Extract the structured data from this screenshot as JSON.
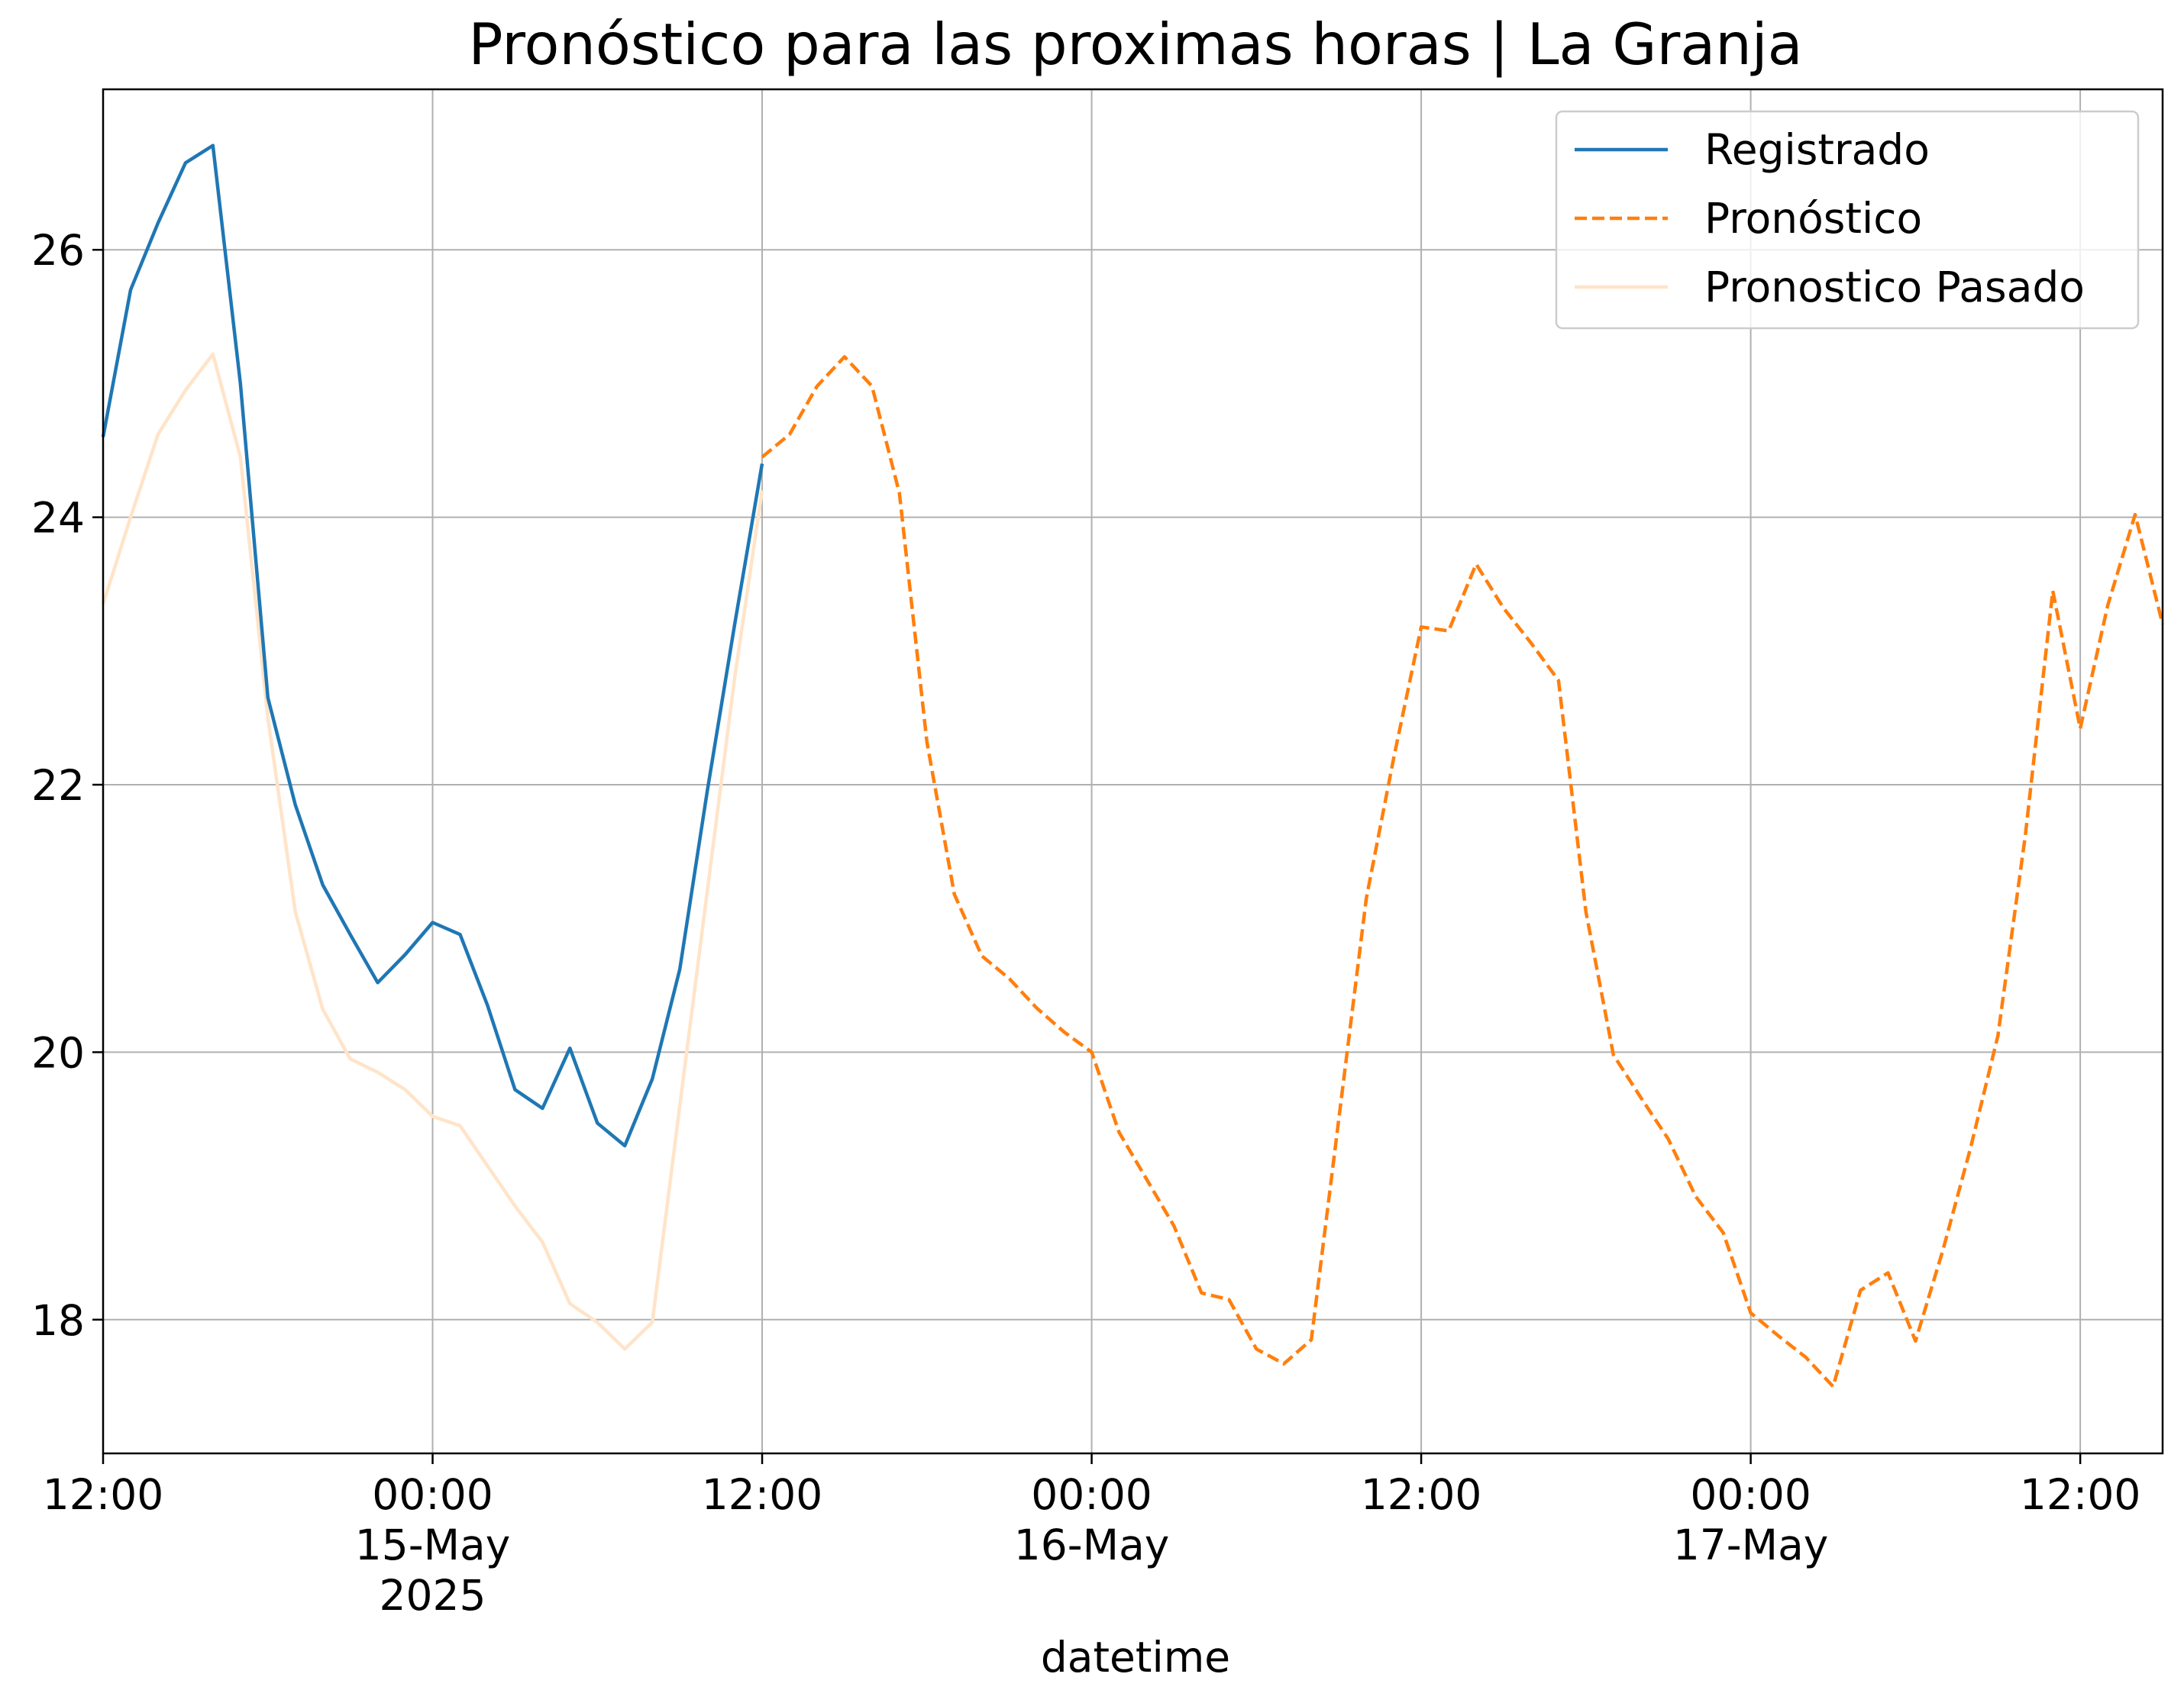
{
  "chart_data": {
    "type": "line",
    "title": "Pronóstico para las proximas horas | La Granja",
    "xlabel": "datetime",
    "ylabel": "",
    "x_unit": "datetime",
    "xlim": [
      "2025-05-14 12:00",
      "2025-05-17 15:00"
    ],
    "ylim": [
      17.0,
      27.2
    ],
    "y_ticks": [
      18,
      20,
      22,
      24,
      26
    ],
    "x_ticks": [
      {
        "at": "2025-05-14 12:00",
        "lines": [
          "12:00"
        ]
      },
      {
        "at": "2025-05-15 00:00",
        "lines": [
          "00:00",
          "15-May",
          "2025"
        ]
      },
      {
        "at": "2025-05-15 12:00",
        "lines": [
          "12:00"
        ]
      },
      {
        "at": "2025-05-16 00:00",
        "lines": [
          "00:00",
          "16-May"
        ]
      },
      {
        "at": "2025-05-16 12:00",
        "lines": [
          "12:00"
        ]
      },
      {
        "at": "2025-05-17 00:00",
        "lines": [
          "00:00",
          "17-May"
        ]
      },
      {
        "at": "2025-05-17 12:00",
        "lines": [
          "12:00"
        ]
      }
    ],
    "grid": true,
    "legend_position": "top-right",
    "series": [
      {
        "name": "Registrado",
        "color": "#1f77b4",
        "style": "solid",
        "x": [
          "2025-05-14 12:00",
          "2025-05-14 13:00",
          "2025-05-14 14:00",
          "2025-05-14 15:00",
          "2025-05-14 16:00",
          "2025-05-14 17:00",
          "2025-05-14 18:00",
          "2025-05-14 19:00",
          "2025-05-14 20:00",
          "2025-05-14 21:00",
          "2025-05-14 22:00",
          "2025-05-14 23:00",
          "2025-05-15 00:00",
          "2025-05-15 01:00",
          "2025-05-15 02:00",
          "2025-05-15 03:00",
          "2025-05-15 04:00",
          "2025-05-15 05:00",
          "2025-05-15 06:00",
          "2025-05-15 07:00",
          "2025-05-15 08:00",
          "2025-05-15 09:00",
          "2025-05-15 10:00",
          "2025-05-15 11:00",
          "2025-05-15 12:00"
        ],
        "values": [
          24.6,
          25.7,
          26.2,
          26.65,
          26.78,
          25.0,
          22.65,
          21.85,
          21.25,
          20.88,
          20.52,
          20.73,
          20.97,
          20.88,
          20.35,
          19.72,
          19.58,
          20.03,
          19.47,
          19.3,
          19.8,
          20.62,
          21.95,
          23.2,
          24.4
        ]
      },
      {
        "name": "Pronóstico",
        "color": "#ff7f0e",
        "style": "dashed",
        "x": [
          "2025-05-15 12:00",
          "2025-05-15 13:00",
          "2025-05-15 14:00",
          "2025-05-15 15:00",
          "2025-05-15 16:00",
          "2025-05-15 17:00",
          "2025-05-15 18:00",
          "2025-05-15 19:00",
          "2025-05-15 20:00",
          "2025-05-15 21:00",
          "2025-05-15 22:00",
          "2025-05-15 23:00",
          "2025-05-16 00:00",
          "2025-05-16 01:00",
          "2025-05-16 02:00",
          "2025-05-16 03:00",
          "2025-05-16 04:00",
          "2025-05-16 05:00",
          "2025-05-16 06:00",
          "2025-05-16 07:00",
          "2025-05-16 08:00",
          "2025-05-16 09:00",
          "2025-05-16 10:00",
          "2025-05-16 11:00",
          "2025-05-16 12:00",
          "2025-05-16 13:00",
          "2025-05-16 14:00",
          "2025-05-16 15:00",
          "2025-05-16 16:00",
          "2025-05-16 17:00",
          "2025-05-16 18:00",
          "2025-05-16 19:00",
          "2025-05-16 20:00",
          "2025-05-16 21:00",
          "2025-05-16 22:00",
          "2025-05-16 23:00",
          "2025-05-17 00:00",
          "2025-05-17 01:00",
          "2025-05-17 02:00",
          "2025-05-17 03:00",
          "2025-05-17 04:00",
          "2025-05-17 05:00",
          "2025-05-17 06:00",
          "2025-05-17 07:00",
          "2025-05-17 08:00",
          "2025-05-17 09:00",
          "2025-05-17 10:00",
          "2025-05-17 11:00",
          "2025-05-17 12:00",
          "2025-05-17 13:00",
          "2025-05-17 14:00",
          "2025-05-17 15:00"
        ],
        "values": [
          24.45,
          24.62,
          24.98,
          25.2,
          24.98,
          24.18,
          22.32,
          21.18,
          20.72,
          20.55,
          20.33,
          20.15,
          20.0,
          19.4,
          19.05,
          18.7,
          18.2,
          18.15,
          17.78,
          17.67,
          17.85,
          19.5,
          21.15,
          22.2,
          23.18,
          23.15,
          23.65,
          23.32,
          23.06,
          22.78,
          21.05,
          19.98,
          19.66,
          19.35,
          18.92,
          18.65,
          18.05,
          17.88,
          17.72,
          17.5,
          18.22,
          18.35,
          17.84,
          18.52,
          19.28,
          20.12,
          21.62,
          23.45,
          22.42,
          23.34,
          24.02,
          23.2
        ]
      },
      {
        "name": "Pronostico Pasado",
        "color": "#ffe4c9",
        "style": "solid",
        "x": [
          "2025-05-14 12:00",
          "2025-05-14 13:00",
          "2025-05-14 14:00",
          "2025-05-14 15:00",
          "2025-05-14 16:00",
          "2025-05-14 17:00",
          "2025-05-14 18:00",
          "2025-05-14 19:00",
          "2025-05-14 20:00",
          "2025-05-14 21:00",
          "2025-05-14 22:00",
          "2025-05-14 23:00",
          "2025-05-15 00:00",
          "2025-05-15 01:00",
          "2025-05-15 02:00",
          "2025-05-15 03:00",
          "2025-05-15 04:00",
          "2025-05-15 05:00",
          "2025-05-15 06:00",
          "2025-05-15 07:00",
          "2025-05-15 08:00",
          "2025-05-15 09:00",
          "2025-05-15 10:00",
          "2025-05-15 11:00",
          "2025-05-15 12:00"
        ],
        "values": [
          23.35,
          24.0,
          24.62,
          24.95,
          25.22,
          24.45,
          22.5,
          21.05,
          20.32,
          19.95,
          19.85,
          19.72,
          19.52,
          19.45,
          19.15,
          18.85,
          18.58,
          18.12,
          17.98,
          17.78,
          17.98,
          19.6,
          21.2,
          22.8,
          24.2
        ]
      }
    ]
  }
}
